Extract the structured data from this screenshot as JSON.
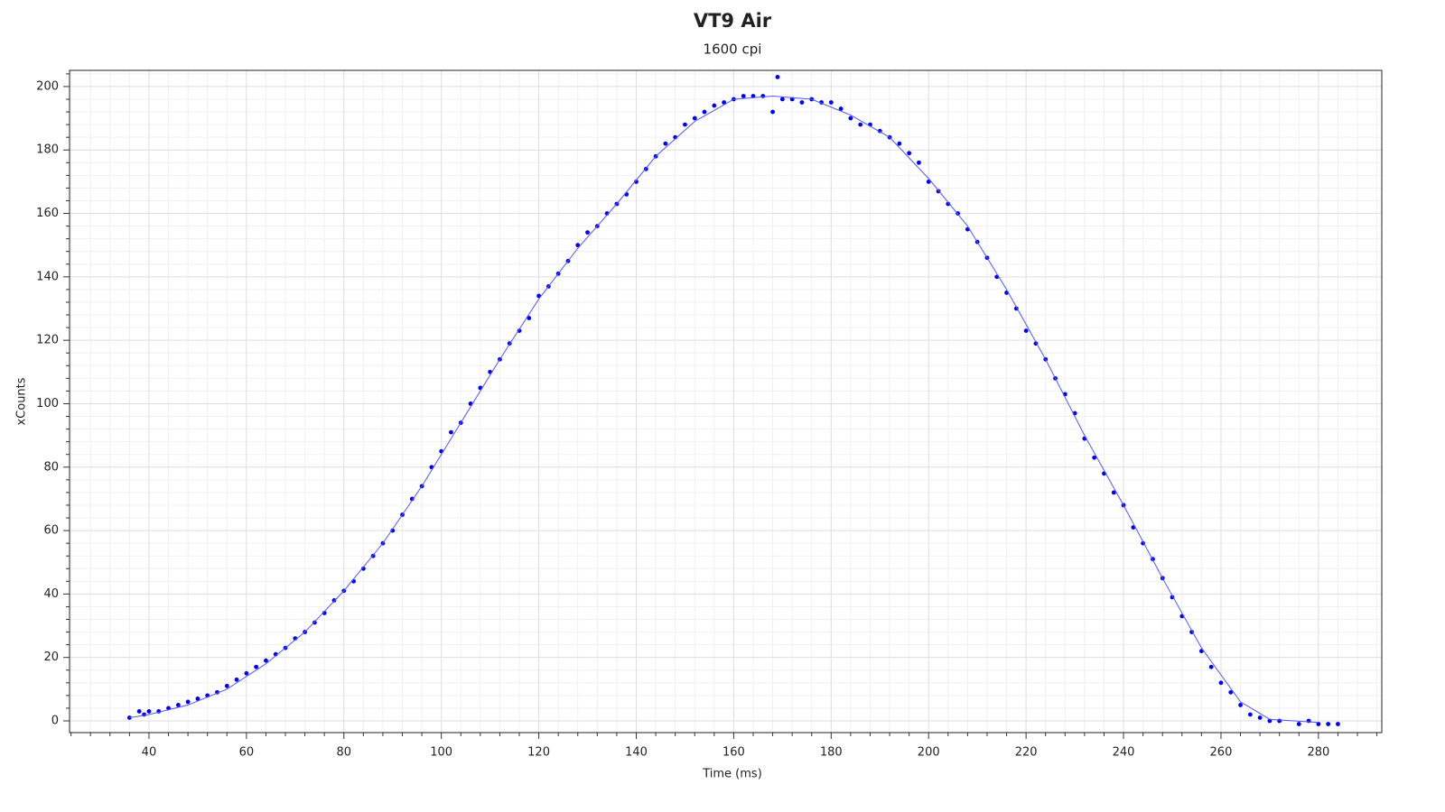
{
  "chart_data": {
    "type": "scatter",
    "title": "VT9 Air",
    "subtitle": "1600 cpi",
    "x_label": "Time (ms)",
    "y_label": "xCounts",
    "xlim": [
      23.7,
      293
    ],
    "ylim": [
      -3.7,
      205.1
    ],
    "xticks": [
      40,
      60,
      80,
      100,
      120,
      140,
      160,
      180,
      200,
      220,
      240,
      260,
      280
    ],
    "yticks": [
      0,
      20,
      40,
      60,
      80,
      100,
      120,
      140,
      160,
      180,
      200
    ],
    "grid": true,
    "series": [
      {
        "type": "scatter",
        "color": "#0000ff",
        "x": [
          36,
          38,
          39,
          40,
          42,
          44,
          46,
          48,
          50,
          52,
          54,
          56,
          58,
          60,
          62,
          64,
          66,
          68,
          70,
          72,
          74,
          76,
          78,
          80,
          82,
          84,
          86,
          88,
          90,
          92,
          94,
          96,
          98,
          100,
          102,
          104,
          106,
          108,
          110,
          112,
          114,
          116,
          118,
          120,
          122,
          124,
          126,
          128,
          130,
          132,
          134,
          136,
          138,
          140,
          142,
          144,
          146,
          148,
          150,
          152,
          154,
          156,
          158,
          160,
          162,
          164,
          166,
          168,
          169,
          170,
          172,
          174,
          176,
          178,
          180,
          182,
          184,
          186,
          188,
          190,
          192,
          194,
          196,
          198,
          200,
          202,
          204,
          206,
          208,
          210,
          212,
          214,
          216,
          218,
          220,
          222,
          224,
          226,
          228,
          230,
          232,
          234,
          236,
          238,
          240,
          242,
          244,
          246,
          248,
          250,
          252,
          254,
          256,
          258,
          260,
          262,
          264,
          266,
          268,
          270,
          272,
          276,
          278,
          280,
          282,
          284
        ],
        "values": [
          1,
          3,
          2,
          3,
          3,
          4,
          5,
          6,
          7,
          8,
          9,
          11,
          13,
          15,
          17,
          19,
          21,
          23,
          26,
          28,
          31,
          34,
          38,
          41,
          44,
          48,
          52,
          56,
          60,
          65,
          70,
          74,
          80,
          85,
          91,
          94,
          100,
          105,
          110,
          114,
          119,
          123,
          127,
          134,
          137,
          141,
          145,
          150,
          154,
          156,
          160,
          163,
          166,
          170,
          174,
          178,
          182,
          184,
          188,
          190,
          192,
          194,
          195,
          196,
          197,
          197,
          197,
          192,
          203,
          196,
          196,
          195,
          196,
          195,
          195,
          193,
          190,
          188,
          188,
          186,
          184,
          182,
          179,
          176,
          170,
          167,
          163,
          160,
          155,
          151,
          146,
          140,
          135,
          130,
          123,
          119,
          114,
          108,
          103,
          97,
          89,
          83,
          78,
          72,
          68,
          61,
          56,
          51,
          45,
          39,
          33,
          28,
          22,
          17,
          12,
          9,
          5,
          2,
          1,
          0,
          0,
          -1,
          0,
          -1,
          -1,
          -1
        ]
      },
      {
        "type": "line",
        "color": "#5555ff",
        "x": [
          36,
          40,
          48,
          56,
          64,
          72,
          80,
          88,
          96,
          104,
          112,
          120,
          128,
          136,
          144,
          152,
          160,
          168,
          176,
          184,
          192,
          200,
          208,
          216,
          224,
          232,
          240,
          248,
          256,
          264,
          270,
          280
        ],
        "values": [
          1,
          2,
          5,
          10,
          18,
          28,
          41,
          56,
          74,
          94,
          114,
          133,
          149,
          163,
          178,
          189,
          196,
          197,
          196,
          191,
          184,
          171,
          156,
          136,
          114,
          90,
          68,
          45,
          23,
          6,
          0.5,
          -0.5
        ]
      }
    ]
  }
}
